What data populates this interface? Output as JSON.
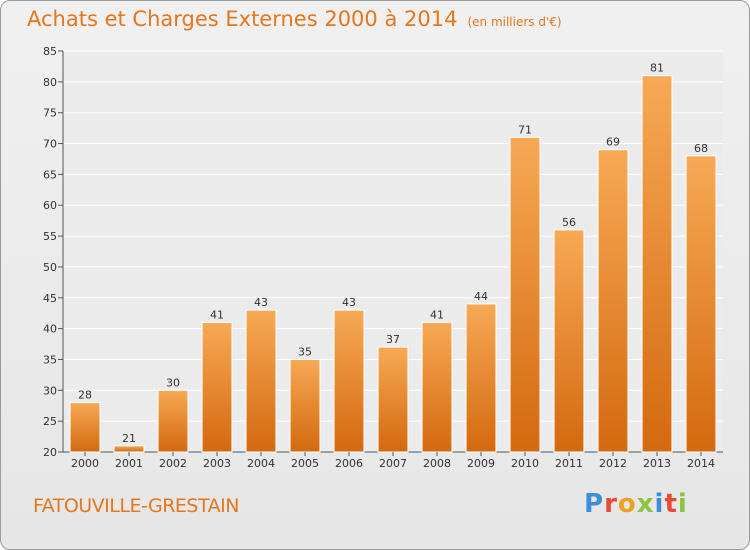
{
  "title": "Achats et Charges Externes 2000 à 2014",
  "unit": "(en milliers d'€)",
  "commune": "FATOUVILLE-GRESTAIN",
  "logo": {
    "letters": [
      "P",
      "r",
      "o",
      "x",
      "i",
      "t",
      "i"
    ],
    "colors": [
      "#3a8fd8",
      "#e84a3a",
      "#f0a020",
      "#8bc53f",
      "#3a8fd8",
      "#e84a3a",
      "#8bc53f"
    ]
  },
  "colors": {
    "accent": "#e8761c",
    "bar_top": "#f7a955",
    "bar_bottom": "#d4690f"
  },
  "chart_data": {
    "type": "bar",
    "title": "Achats et Charges Externes 2000 à 2014",
    "subtitle": "(en milliers d'€)",
    "categories": [
      "2000",
      "2001",
      "2002",
      "2003",
      "2004",
      "2005",
      "2006",
      "2007",
      "2008",
      "2009",
      "2010",
      "2011",
      "2012",
      "2013",
      "2014"
    ],
    "values": [
      28,
      21,
      30,
      41,
      43,
      35,
      43,
      37,
      41,
      44,
      71,
      56,
      69,
      81,
      68
    ],
    "ylim": [
      20,
      85
    ],
    "yticks": [
      20,
      25,
      30,
      35,
      40,
      45,
      50,
      55,
      60,
      65,
      70,
      75,
      80,
      85
    ],
    "grid": true,
    "xlabel": "",
    "ylabel": ""
  }
}
